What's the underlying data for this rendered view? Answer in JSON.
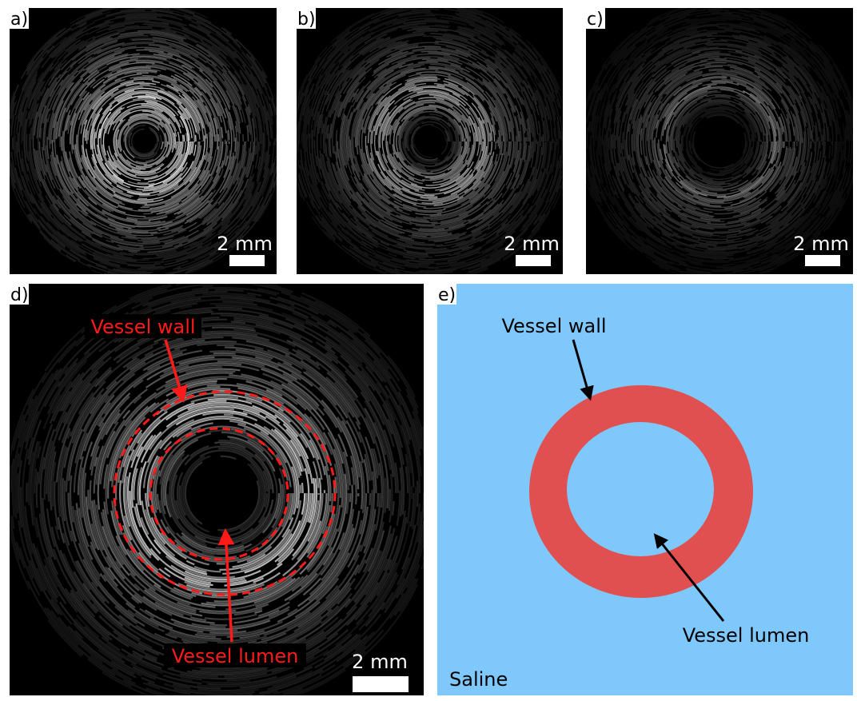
{
  "panels": [
    {
      "label": "a)",
      "scale_bar": "2 mm"
    },
    {
      "label": "b)",
      "scale_bar": "2 mm"
    },
    {
      "label": "c)",
      "scale_bar": "2 mm"
    },
    {
      "label": "d)",
      "scale_bar": "2 mm",
      "annotations": [
        "Vessel wall",
        "Vessel lumen"
      ]
    },
    {
      "label": "e)",
      "annotations": [
        "Vessel wall",
        "Vessel lumen"
      ],
      "region_label": "Saline"
    }
  ]
}
